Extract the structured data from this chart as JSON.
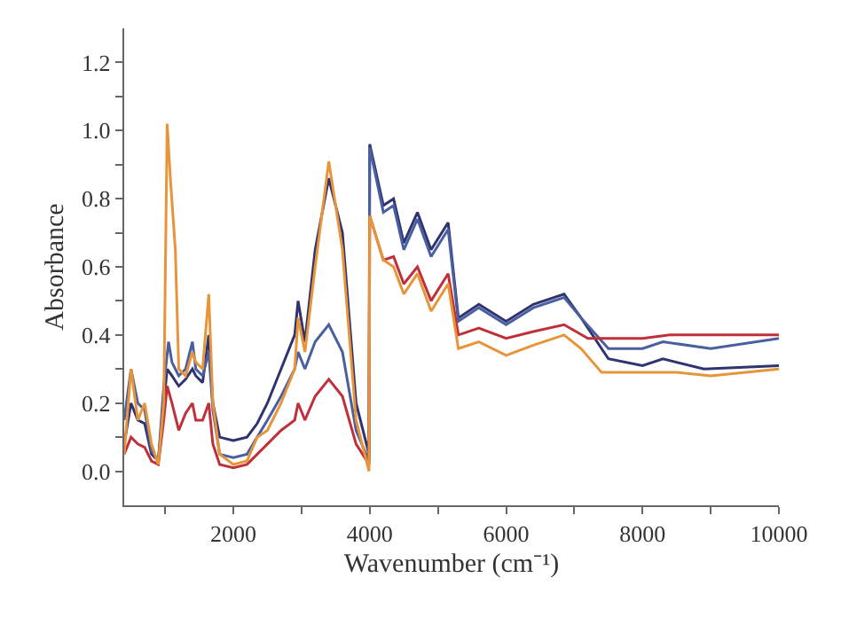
{
  "chart_data": {
    "type": "line",
    "xlabel": "Wavenumber (cm⁻¹)",
    "ylabel": "Absorbance",
    "xlim": [
      400,
      10000
    ],
    "ylim": [
      -0.1,
      1.3
    ],
    "xticks": [
      {
        "value": 1000,
        "label": null
      },
      2000,
      {
        "value": 3000,
        "label": null
      },
      4000,
      {
        "value": 5000,
        "label": null
      },
      6000,
      {
        "value": 7000,
        "label": null
      },
      8000,
      {
        "value": 9000,
        "label": null
      },
      10000
    ],
    "yticks": [
      {
        "value": 0,
        "label": "0.0"
      },
      {
        "value": 0.1,
        "label": null
      },
      {
        "value": 0.2,
        "label": "0.2"
      },
      {
        "value": 0.3,
        "label": null
      },
      {
        "value": 0.4,
        "label": "0.4"
      },
      {
        "value": 0.5,
        "label": null
      },
      {
        "value": 0.6,
        "label": "0.6"
      },
      {
        "value": 0.7,
        "label": null
      },
      {
        "value": 0.8,
        "label": "0.8"
      },
      {
        "value": 0.9,
        "label": null
      },
      {
        "value": 1.0,
        "label": "1.0"
      },
      {
        "value": 1.1,
        "label": null
      },
      {
        "value": 1.2,
        "label": "1.2"
      }
    ],
    "marker": "none",
    "line_style": "solid",
    "series": [
      {
        "color": "#2f3470",
        "x": [
          400,
          500,
          600,
          700,
          800,
          900,
          980,
          1030,
          1100,
          1200,
          1300,
          1400,
          1450,
          1550,
          1640,
          1700,
          1800,
          2000,
          2200,
          2350,
          2500,
          2700,
          2900,
          2950,
          3050,
          3200,
          3400,
          3600,
          3800,
          3990,
          4000,
          4200,
          4350,
          4500,
          4700,
          4900,
          5150,
          5300,
          5600,
          6000,
          6400,
          6850,
          7100,
          7500,
          8000,
          8300,
          8900,
          10000
        ],
        "values": [
          0.08,
          0.2,
          0.15,
          0.14,
          0.05,
          0.03,
          0.2,
          0.3,
          0.28,
          0.25,
          0.27,
          0.3,
          0.28,
          0.26,
          0.4,
          0.2,
          0.1,
          0.09,
          0.1,
          0.14,
          0.2,
          0.3,
          0.4,
          0.5,
          0.38,
          0.65,
          0.86,
          0.7,
          0.2,
          0.05,
          0.96,
          0.78,
          0.8,
          0.67,
          0.76,
          0.65,
          0.73,
          0.45,
          0.49,
          0.44,
          0.49,
          0.52,
          0.45,
          0.33,
          0.31,
          0.33,
          0.3,
          0.31
        ]
      },
      {
        "color": "#4a5fa0",
        "x": [
          400,
          500,
          600,
          700,
          800,
          900,
          980,
          1050,
          1100,
          1200,
          1300,
          1400,
          1450,
          1550,
          1640,
          1700,
          1800,
          2000,
          2200,
          2350,
          2500,
          2700,
          2900,
          2950,
          3050,
          3200,
          3400,
          3600,
          3800,
          3990,
          4000,
          4200,
          4350,
          4500,
          4700,
          4900,
          5150,
          5300,
          5600,
          6000,
          6400,
          6850,
          7100,
          7500,
          8000,
          8300,
          9000,
          10000
        ],
        "values": [
          0.15,
          0.3,
          0.2,
          0.18,
          0.06,
          0.03,
          0.25,
          0.38,
          0.32,
          0.28,
          0.3,
          0.38,
          0.3,
          0.28,
          0.35,
          0.18,
          0.05,
          0.04,
          0.05,
          0.1,
          0.15,
          0.22,
          0.3,
          0.35,
          0.3,
          0.38,
          0.43,
          0.35,
          0.12,
          0.03,
          0.95,
          0.76,
          0.78,
          0.65,
          0.74,
          0.63,
          0.71,
          0.44,
          0.48,
          0.43,
          0.48,
          0.51,
          0.45,
          0.36,
          0.36,
          0.38,
          0.36,
          0.39
        ]
      },
      {
        "color": "#c0303a",
        "x": [
          400,
          500,
          600,
          700,
          800,
          900,
          980,
          1030,
          1100,
          1200,
          1300,
          1400,
          1450,
          1550,
          1640,
          1700,
          1800,
          2000,
          2200,
          2350,
          2500,
          2700,
          2900,
          2950,
          3050,
          3200,
          3400,
          3600,
          3800,
          3990,
          4000,
          4200,
          4350,
          4500,
          4700,
          4900,
          5150,
          5300,
          5600,
          6000,
          6400,
          6850,
          7200,
          8000,
          8400,
          10000
        ],
        "values": [
          0.05,
          0.1,
          0.08,
          0.07,
          0.03,
          0.02,
          0.15,
          0.25,
          0.2,
          0.12,
          0.17,
          0.2,
          0.15,
          0.15,
          0.2,
          0.08,
          0.02,
          0.01,
          0.02,
          0.05,
          0.08,
          0.12,
          0.15,
          0.2,
          0.15,
          0.22,
          0.27,
          0.22,
          0.08,
          0.02,
          0.75,
          0.62,
          0.63,
          0.55,
          0.6,
          0.5,
          0.58,
          0.4,
          0.42,
          0.39,
          0.41,
          0.43,
          0.39,
          0.39,
          0.4,
          0.4
        ]
      },
      {
        "color": "#e8953a",
        "x": [
          400,
          500,
          600,
          700,
          800,
          900,
          980,
          1030,
          1080,
          1150,
          1200,
          1300,
          1400,
          1450,
          1550,
          1640,
          1700,
          1800,
          2000,
          2200,
          2350,
          2500,
          2700,
          2900,
          2950,
          3050,
          3200,
          3400,
          3600,
          3800,
          3990,
          4000,
          4200,
          4350,
          4500,
          4700,
          4900,
          5150,
          5300,
          5600,
          6000,
          6400,
          6850,
          7100,
          7400,
          8000,
          8500,
          9000,
          10000
        ],
        "values": [
          0.05,
          0.3,
          0.15,
          0.2,
          0.08,
          0.02,
          0.2,
          1.02,
          0.85,
          0.65,
          0.3,
          0.28,
          0.35,
          0.32,
          0.3,
          0.52,
          0.2,
          0.05,
          0.02,
          0.03,
          0.1,
          0.12,
          0.2,
          0.3,
          0.45,
          0.35,
          0.6,
          0.91,
          0.65,
          0.15,
          0.0,
          0.75,
          0.62,
          0.6,
          0.52,
          0.58,
          0.47,
          0.55,
          0.36,
          0.38,
          0.34,
          0.37,
          0.4,
          0.36,
          0.29,
          0.29,
          0.29,
          0.28,
          0.3
        ]
      }
    ]
  }
}
